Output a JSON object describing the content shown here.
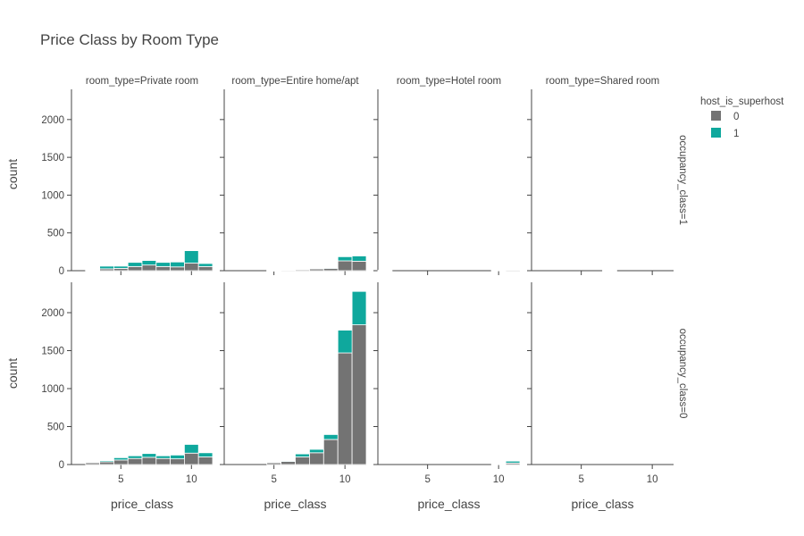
{
  "chart_data": {
    "type": "bar",
    "barmode": "stack",
    "title": "Price Class by Room Type",
    "xlabel": "price_class",
    "ylabel": "count",
    "x_tickvals": [
      5,
      10
    ],
    "xlim": [
      1.5,
      11.5
    ],
    "y_tickvals": [
      0,
      500,
      1000,
      1500,
      2000
    ],
    "ylim": [
      0,
      2400
    ],
    "column_facets": [
      "room_type=Private room",
      "room_type=Entire home/apt",
      "room_type=Hotel room",
      "room_type=Shared room"
    ],
    "row_facets": [
      "occupancy_class=1",
      "occupancy_class=0"
    ],
    "legend": {
      "title": "host_is_superhost",
      "placement": "top-right",
      "items": [
        {
          "label": "0",
          "color": "#737373"
        },
        {
          "label": "1",
          "color": "#0fa89d"
        }
      ]
    },
    "x": [
      2,
      3,
      4,
      5,
      6,
      7,
      8,
      9,
      10,
      11
    ],
    "panels": [
      {
        "row": 0,
        "col": 0,
        "series": [
          {
            "name": "0",
            "values": [
              0,
              5,
              25,
              30,
              55,
              75,
              55,
              50,
              100,
              55
            ]
          },
          {
            "name": "1",
            "values": [
              0,
              5,
              35,
              30,
              55,
              60,
              55,
              65,
              165,
              40
            ]
          }
        ]
      },
      {
        "row": 0,
        "col": 1,
        "series": [
          {
            "name": "0",
            "values": [
              0,
              0,
              0,
              2,
              8,
              15,
              25,
              30,
              130,
              125
            ]
          },
          {
            "name": "1",
            "values": [
              0,
              0,
              0,
              1,
              2,
              5,
              5,
              10,
              55,
              70
            ]
          }
        ]
      },
      {
        "row": 0,
        "col": 2,
        "series": [
          {
            "name": "0",
            "values": [
              5,
              0,
              0,
              0,
              0,
              0,
              0,
              0,
              5,
              10
            ]
          },
          {
            "name": "1",
            "values": [
              0,
              0,
              0,
              0,
              0,
              0,
              0,
              0,
              2,
              5
            ]
          }
        ]
      },
      {
        "row": 0,
        "col": 3,
        "series": [
          {
            "name": "0",
            "values": [
              0,
              0,
              0,
              0,
              0,
              2,
              0,
              0,
              0,
              0
            ]
          },
          {
            "name": "1",
            "values": [
              0,
              0,
              0,
              0,
              0,
              0,
              0,
              0,
              0,
              0
            ]
          }
        ]
      },
      {
        "row": 1,
        "col": 0,
        "series": [
          {
            "name": "0",
            "values": [
              0,
              25,
              35,
              60,
              80,
              95,
              80,
              75,
              150,
              100
            ]
          },
          {
            "name": "1",
            "values": [
              0,
              5,
              15,
              30,
              35,
              50,
              35,
              50,
              115,
              55
            ]
          }
        ]
      },
      {
        "row": 1,
        "col": 1,
        "series": [
          {
            "name": "0",
            "values": [
              0,
              0,
              0,
              25,
              40,
              100,
              155,
              330,
              1470,
              1840
            ]
          },
          {
            "name": "1",
            "values": [
              0,
              0,
              0,
              5,
              10,
              40,
              45,
              65,
              300,
              440
            ]
          }
        ]
      },
      {
        "row": 1,
        "col": 2,
        "series": [
          {
            "name": "0",
            "values": [
              0,
              0,
              0,
              0,
              0,
              0,
              0,
              0,
              5,
              20
            ]
          },
          {
            "name": "1",
            "values": [
              0,
              0,
              0,
              0,
              0,
              0,
              0,
              0,
              0,
              25
            ]
          }
        ]
      },
      {
        "row": 1,
        "col": 3,
        "series": [
          {
            "name": "0",
            "values": [
              0,
              0,
              0,
              0,
              0,
              0,
              0,
              0,
              0,
              0
            ]
          },
          {
            "name": "1",
            "values": [
              0,
              0,
              0,
              0,
              0,
              0,
              0,
              0,
              0,
              0
            ]
          }
        ]
      }
    ]
  }
}
